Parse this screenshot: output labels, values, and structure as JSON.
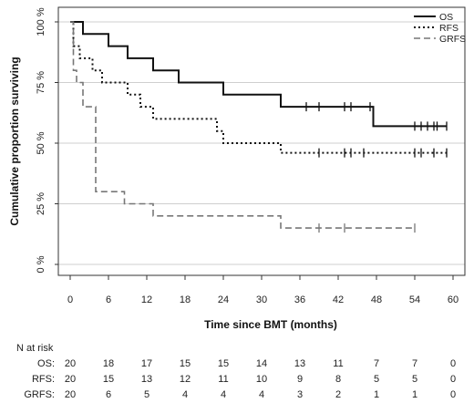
{
  "chart_data": {
    "type": "line",
    "title": "",
    "xlabel": "Time since BMT (months)",
    "ylabel": "Cumulative proportion surviving",
    "xlim": [
      0,
      60
    ],
    "ylim": [
      0,
      100
    ],
    "x_ticks": [
      0,
      6,
      12,
      18,
      24,
      30,
      36,
      42,
      48,
      54,
      60
    ],
    "x_tick_labels": [
      "0",
      "6",
      "12",
      "18",
      "24",
      "30",
      "36",
      "42",
      "48",
      "54",
      "60"
    ],
    "y_ticks": [
      0,
      25,
      50,
      75,
      100
    ],
    "y_tick_labels": [
      "0 %",
      "25 %",
      "50 %",
      "75 %",
      "100 %"
    ],
    "grid": "horizontal gridlines at y ticks",
    "legend_position": "top-right",
    "series": [
      {
        "name": "OS",
        "style": "solid",
        "color": "#111111",
        "steps": [
          [
            0,
            100
          ],
          [
            2,
            95
          ],
          [
            6,
            90
          ],
          [
            9,
            85
          ],
          [
            13,
            80
          ],
          [
            17,
            75
          ],
          [
            24,
            70
          ],
          [
            33,
            65
          ],
          [
            47.5,
            57
          ]
        ],
        "end_x": 59,
        "censored": [
          [
            37,
            65
          ],
          [
            39,
            65
          ],
          [
            43,
            65
          ],
          [
            44,
            65
          ],
          [
            47,
            65
          ],
          [
            54,
            57
          ],
          [
            55,
            57
          ],
          [
            56,
            57
          ],
          [
            57,
            57
          ],
          [
            57.5,
            57
          ],
          [
            59,
            57
          ]
        ]
      },
      {
        "name": "RFS",
        "style": "dotted",
        "color": "#111111",
        "steps": [
          [
            0,
            100
          ],
          [
            0.5,
            90
          ],
          [
            1.5,
            85
          ],
          [
            3.5,
            80
          ],
          [
            5,
            75
          ],
          [
            9,
            70
          ],
          [
            11,
            65
          ],
          [
            13,
            60
          ],
          [
            23,
            55
          ],
          [
            24,
            50
          ],
          [
            33,
            46
          ]
        ],
        "end_x": 59,
        "censored": [
          [
            39,
            46
          ],
          [
            43,
            46
          ],
          [
            44,
            46
          ],
          [
            46,
            46
          ],
          [
            54,
            46
          ],
          [
            55,
            46
          ],
          [
            57,
            46
          ],
          [
            59,
            46
          ]
        ]
      },
      {
        "name": "GRFS",
        "style": "dashed",
        "color": "#777777",
        "steps": [
          [
            0,
            100
          ],
          [
            0.5,
            80
          ],
          [
            1,
            75
          ],
          [
            2,
            65
          ],
          [
            4,
            30
          ],
          [
            8.5,
            25
          ],
          [
            13,
            20
          ],
          [
            33,
            15
          ]
        ],
        "end_x": 54,
        "censored": [
          [
            39,
            15
          ],
          [
            43,
            15
          ],
          [
            54,
            15
          ]
        ]
      }
    ]
  },
  "risk_table": {
    "header": "N at risk",
    "rows": [
      {
        "label": "OS:",
        "values": [
          "20",
          "18",
          "17",
          "15",
          "15",
          "14",
          "13",
          "11",
          "7",
          "7",
          "0"
        ]
      },
      {
        "label": "RFS:",
        "values": [
          "20",
          "15",
          "13",
          "12",
          "11",
          "10",
          "9",
          "8",
          "5",
          "5",
          "0"
        ]
      },
      {
        "label": "GRFS:",
        "values": [
          "20",
          "6",
          "5",
          "4",
          "4",
          "4",
          "3",
          "2",
          "1",
          "1",
          "0"
        ]
      }
    ]
  }
}
